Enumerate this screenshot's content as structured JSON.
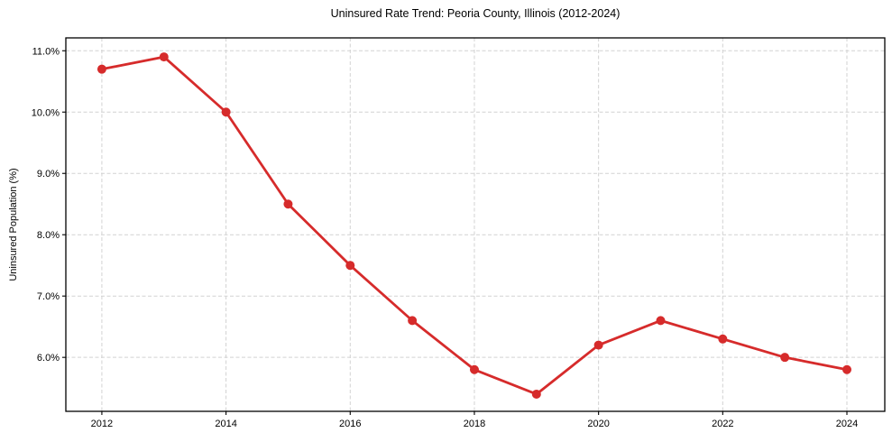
{
  "chart_data": {
    "type": "line",
    "title": "Uninsured Rate Trend: Peoria County, Illinois (2012-2024)",
    "ylabel": "Uninsured Population (%)",
    "xlabel": "",
    "x": [
      2012,
      2013,
      2014,
      2015,
      2016,
      2017,
      2018,
      2019,
      2020,
      2021,
      2022,
      2023,
      2024
    ],
    "values": [
      10.7,
      10.9,
      10.0,
      8.5,
      7.5,
      6.6,
      5.8,
      5.4,
      6.2,
      6.6,
      6.3,
      6.0,
      5.8
    ],
    "xlim": [
      2011.42,
      2024.61
    ],
    "ylim": [
      5.12,
      11.21
    ],
    "xticks": [
      2012,
      2014,
      2016,
      2018,
      2020,
      2022,
      2024
    ],
    "xtick_labels": [
      "2012",
      "2014",
      "2016",
      "2018",
      "2020",
      "2022",
      "2024"
    ],
    "yticks": [
      6,
      7,
      8,
      9,
      10,
      11
    ],
    "ytick_labels": [
      "6.0%",
      "7.0%",
      "8.0%",
      "9.0%",
      "10.0%",
      "11.0%"
    ],
    "grid": true,
    "legend_position": "none",
    "line_color": "#d62b2b",
    "marker": "circle",
    "marker_radius": 5,
    "line_width": 2.8
  }
}
